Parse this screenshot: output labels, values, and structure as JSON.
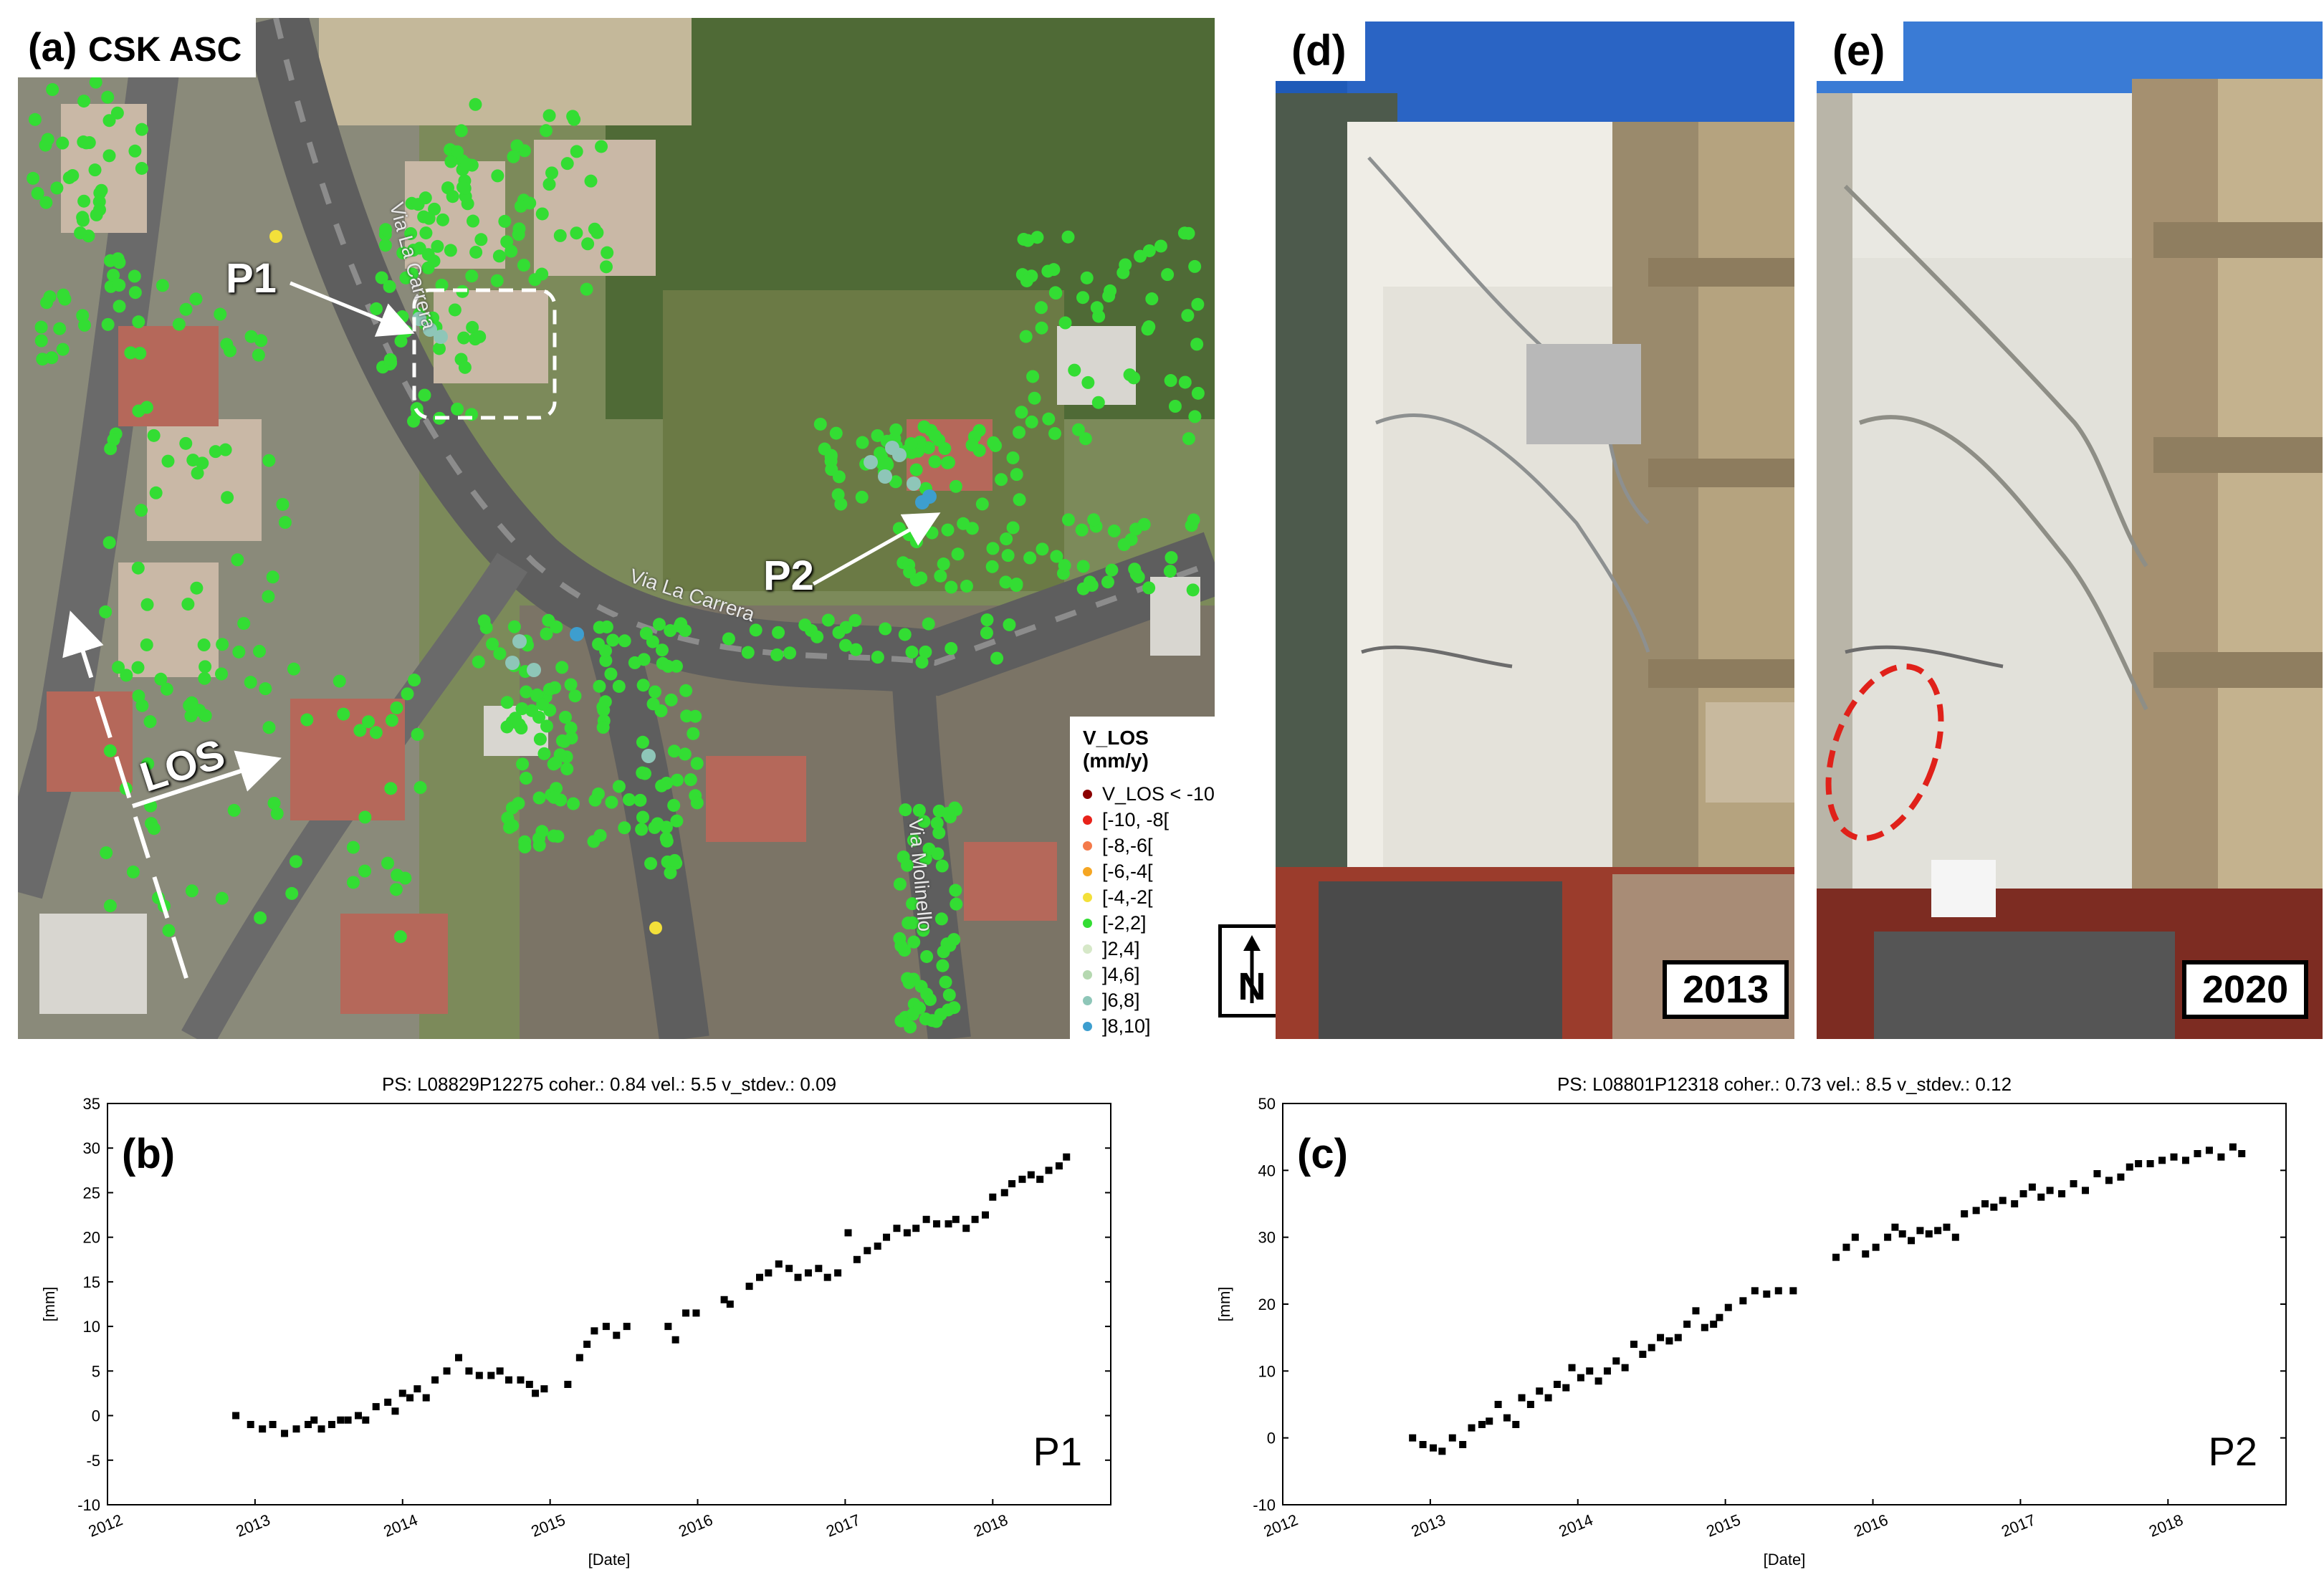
{
  "panel_a": {
    "label": "(a)",
    "sublabel": "CSK ASC",
    "p1_label": "P1",
    "p2_label": "P2",
    "los_label": "LOS",
    "streets": [
      "Via La Carrera",
      "Via La Carrera",
      "Via Molinello"
    ],
    "north_label": "N",
    "legend": {
      "title": "V_LOS (mm/y)",
      "items": [
        {
          "label": "V_LOS < -10",
          "color": "#8b0000"
        },
        {
          "label": "[-10, -8[",
          "color": "#e8221a"
        },
        {
          "label": "[-8,-6[",
          "color": "#f47a4a"
        },
        {
          "label": "[-6,-4[",
          "color": "#f5a623"
        },
        {
          "label": "[-4,-2[",
          "color": "#f3e03a"
        },
        {
          "label": "[-2,2]",
          "color": "#33dd33"
        },
        {
          "label": "]2,4]",
          "color": "#d6e8c8"
        },
        {
          "label": "]4,6]",
          "color": "#b5d8b0"
        },
        {
          "label": "]6,8]",
          "color": "#8ec6b8"
        },
        {
          "label": "]8,10]",
          "color": "#3d9ecf"
        }
      ]
    }
  },
  "panel_d": {
    "label": "(d)",
    "year": "2013"
  },
  "panel_e": {
    "label": "(e)",
    "year": "2020"
  },
  "chart_data": [
    {
      "type": "scatter",
      "panel_label": "(b)",
      "point_label": "P1",
      "title": "PS: L08829P12275 coher.: 0.84 vel.: 5.5 v_stdev.: 0.09",
      "xlabel": "[Date]",
      "ylabel": "[mm]",
      "xlim": [
        2012,
        2018.8
      ],
      "ylim": [
        -10,
        35
      ],
      "xticks": [
        "2012",
        "2013",
        "2014",
        "2015",
        "2016",
        "2017",
        "2018"
      ],
      "yticks": [
        -10,
        -5,
        0,
        5,
        10,
        15,
        20,
        25,
        30,
        35
      ],
      "x": [
        2012.87,
        2012.97,
        2013.05,
        2013.12,
        2013.2,
        2013.28,
        2013.36,
        2013.4,
        2013.45,
        2013.52,
        2013.58,
        2013.63,
        2013.7,
        2013.75,
        2013.82,
        2013.9,
        2013.95,
        2014.0,
        2014.05,
        2014.1,
        2014.16,
        2014.22,
        2014.3,
        2014.38,
        2014.45,
        2014.52,
        2014.6,
        2014.66,
        2014.72,
        2014.8,
        2014.86,
        2014.9,
        2014.96,
        2015.12,
        2015.2,
        2015.25,
        2015.3,
        2015.38,
        2015.45,
        2015.52,
        2015.8,
        2015.85,
        2015.92,
        2015.99,
        2016.18,
        2016.22,
        2016.35,
        2016.42,
        2016.48,
        2016.55,
        2016.62,
        2016.68,
        2016.75,
        2016.82,
        2016.88,
        2016.95,
        2017.02,
        2017.08,
        2017.15,
        2017.22,
        2017.28,
        2017.35,
        2017.42,
        2017.48,
        2017.55,
        2017.62,
        2017.7,
        2017.75,
        2017.82,
        2017.88,
        2017.95,
        2018.0,
        2018.08,
        2018.13,
        2018.2,
        2018.26,
        2018.32,
        2018.38,
        2018.45,
        2018.5
      ],
      "values": [
        0.0,
        -1.0,
        -1.5,
        -1.0,
        -2.0,
        -1.5,
        -1.0,
        -0.5,
        -1.5,
        -1.0,
        -0.5,
        -0.5,
        0.0,
        -0.5,
        1.0,
        1.5,
        0.5,
        2.5,
        2.0,
        3.0,
        2.0,
        4.0,
        5.0,
        6.5,
        5.0,
        4.5,
        4.5,
        5.0,
        4.0,
        4.0,
        3.5,
        2.5,
        3.0,
        3.5,
        6.5,
        8.0,
        9.5,
        10.0,
        9.0,
        10.0,
        10.0,
        8.5,
        11.5,
        11.5,
        13.0,
        12.5,
        14.5,
        15.5,
        16.0,
        17.0,
        16.5,
        15.5,
        16.0,
        16.5,
        15.5,
        16.0,
        20.5,
        17.5,
        18.5,
        19.0,
        20.0,
        21.0,
        20.5,
        21.0,
        22.0,
        21.5,
        21.5,
        22.0,
        21.0,
        22.0,
        22.5,
        24.5,
        25.0,
        26.0,
        26.5,
        27.0,
        26.5,
        27.5,
        28.0,
        29.0
      ]
    },
    {
      "type": "scatter",
      "panel_label": "(c)",
      "point_label": "P2",
      "title": "PS: L08801P12318 coher.: 0.73 vel.: 8.5 v_stdev.: 0.12",
      "xlabel": "[Date]",
      "ylabel": "[mm]",
      "xlim": [
        2012,
        2018.8
      ],
      "ylim": [
        -10,
        50
      ],
      "xticks": [
        "2012",
        "2013",
        "2014",
        "2015",
        "2016",
        "2017",
        "2018"
      ],
      "yticks": [
        -10,
        0,
        10,
        20,
        30,
        40,
        50
      ],
      "x": [
        2012.88,
        2012.95,
        2013.02,
        2013.08,
        2013.15,
        2013.22,
        2013.28,
        2013.35,
        2013.4,
        2013.46,
        2013.52,
        2013.58,
        2013.62,
        2013.68,
        2013.74,
        2013.8,
        2013.86,
        2013.92,
        2013.96,
        2014.02,
        2014.08,
        2014.14,
        2014.2,
        2014.26,
        2014.32,
        2014.38,
        2014.44,
        2014.5,
        2014.56,
        2014.62,
        2014.68,
        2014.74,
        2014.8,
        2014.86,
        2014.92,
        2014.96,
        2015.02,
        2015.12,
        2015.2,
        2015.28,
        2015.36,
        2015.46,
        2015.75,
        2015.82,
        2015.88,
        2015.95,
        2016.02,
        2016.1,
        2016.15,
        2016.2,
        2016.26,
        2016.32,
        2016.38,
        2016.44,
        2016.5,
        2016.56,
        2016.62,
        2016.7,
        2016.76,
        2016.82,
        2016.88,
        2016.96,
        2017.02,
        2017.08,
        2017.14,
        2017.2,
        2017.28,
        2017.36,
        2017.44,
        2017.52,
        2017.6,
        2017.68,
        2017.74,
        2017.8,
        2017.88,
        2017.96,
        2018.04,
        2018.12,
        2018.2,
        2018.28,
        2018.36,
        2018.44,
        2018.5
      ],
      "values": [
        0.0,
        -1.0,
        -1.5,
        -2.0,
        0.0,
        -1.0,
        1.5,
        2.0,
        2.5,
        5.0,
        3.0,
        2.0,
        6.0,
        5.0,
        7.0,
        6.0,
        8.0,
        7.5,
        10.5,
        9.0,
        10.0,
        8.5,
        10.0,
        11.5,
        10.5,
        14.0,
        12.5,
        13.5,
        15.0,
        14.5,
        15.0,
        17.0,
        19.0,
        16.5,
        17.0,
        18.0,
        19.5,
        20.5,
        22.0,
        21.5,
        22.0,
        22.0,
        27.0,
        28.5,
        30.0,
        27.5,
        28.5,
        30.0,
        31.5,
        30.5,
        29.5,
        31.0,
        30.5,
        31.0,
        31.5,
        30.0,
        33.5,
        34.0,
        35.0,
        34.5,
        35.5,
        35.0,
        36.5,
        37.5,
        36.0,
        37.0,
        36.5,
        38.0,
        37.0,
        39.5,
        38.5,
        39.0,
        40.5,
        41.0,
        41.0,
        41.5,
        42.0,
        41.5,
        42.5,
        43.0,
        42.0,
        43.5,
        42.5
      ]
    }
  ]
}
